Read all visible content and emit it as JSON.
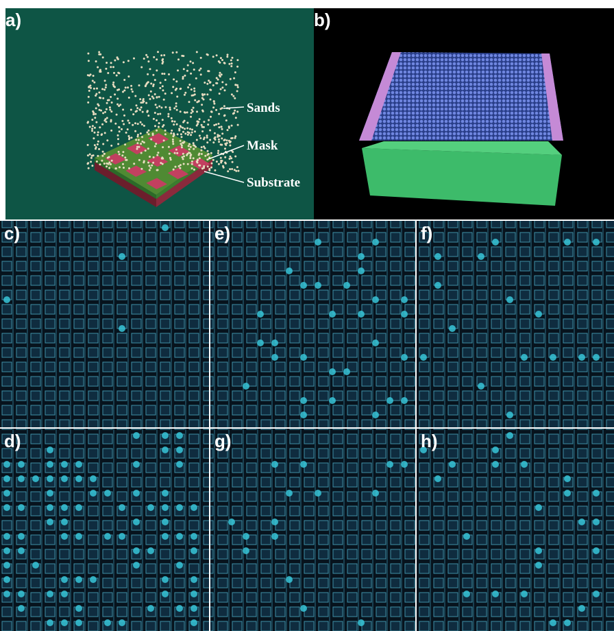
{
  "panels": {
    "a": "a)",
    "b": "b)",
    "c": "c)",
    "d": "d)",
    "e": "e)",
    "f": "f)",
    "g": "g)",
    "h": "h)"
  },
  "annotations": {
    "sands": "Sands",
    "mask": "Mask",
    "substrate": "Substrate"
  }
}
